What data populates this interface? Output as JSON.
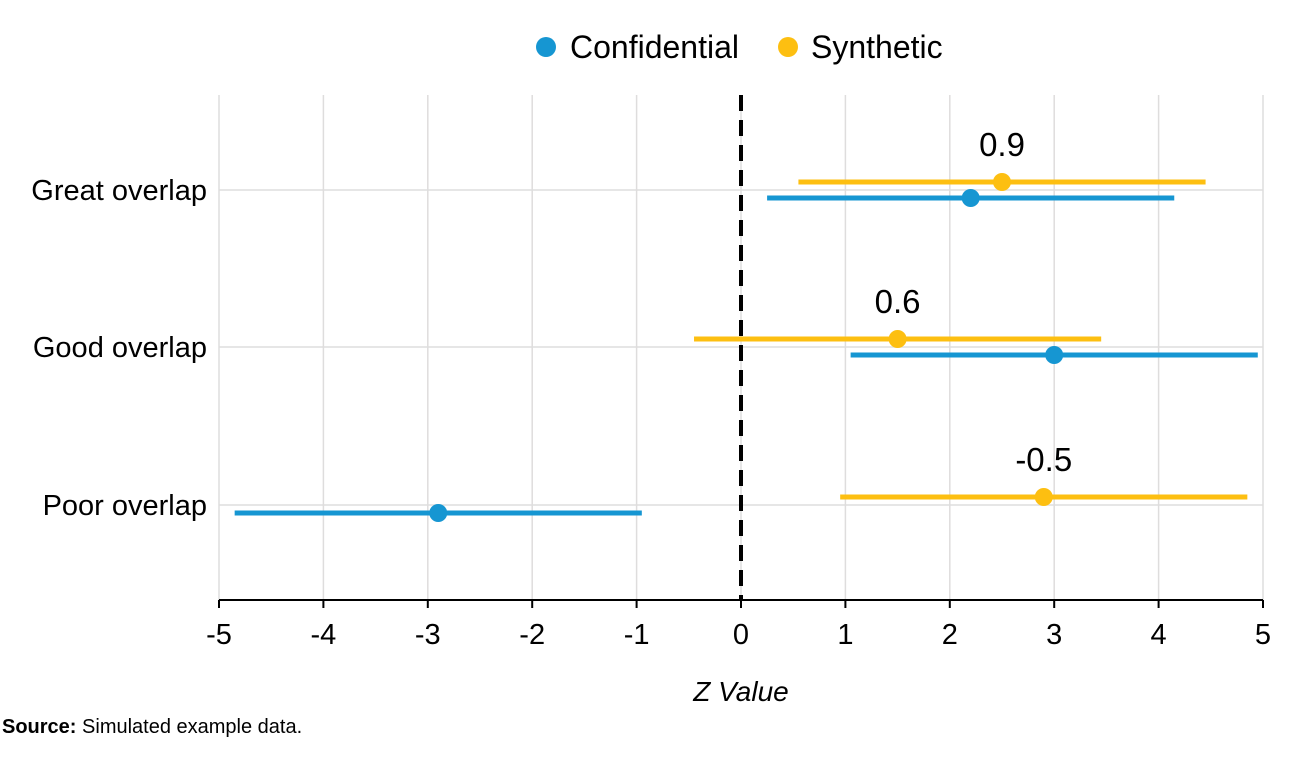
{
  "chart_data": {
    "type": "scatter",
    "subtype": "dot-and-interval",
    "xlabel": "Z Value",
    "xlim": [
      -5,
      5
    ],
    "xticks": [
      -5,
      -4,
      -3,
      -2,
      -1,
      0,
      1,
      2,
      3,
      4,
      5
    ],
    "categories": [
      "Great overlap",
      "Good overlap",
      "Poor overlap"
    ],
    "reference_line": {
      "x": 0,
      "style": "dashed",
      "color": "#000000"
    },
    "grid": true,
    "legend_position": "top",
    "series": [
      {
        "name": "Confidential",
        "color": "#1696d2",
        "points": [
          {
            "category": "Great overlap",
            "estimate": 2.2,
            "lower": 0.25,
            "upper": 4.15
          },
          {
            "category": "Good overlap",
            "estimate": 3.0,
            "lower": 1.05,
            "upper": 4.95
          },
          {
            "category": "Poor overlap",
            "estimate": -2.9,
            "lower": -4.85,
            "upper": -0.95
          }
        ]
      },
      {
        "name": "Synthetic",
        "color": "#fdbf11",
        "points": [
          {
            "category": "Great overlap",
            "estimate": 2.5,
            "lower": 0.55,
            "upper": 4.45
          },
          {
            "category": "Good overlap",
            "estimate": 1.5,
            "lower": -0.45,
            "upper": 3.45
          },
          {
            "category": "Poor overlap",
            "estimate": 2.9,
            "lower": 0.95,
            "upper": 4.85
          }
        ]
      }
    ],
    "annotations": [
      {
        "category": "Great overlap",
        "text": "0.9",
        "x": 2.5
      },
      {
        "category": "Good overlap",
        "text": "0.6",
        "x": 1.5
      },
      {
        "category": "Poor overlap",
        "text": "-0.5",
        "x": 2.9
      }
    ]
  },
  "colors": {
    "confidential": "#1696d2",
    "synthetic": "#fdbf11",
    "grid": "#dedddd",
    "axis": "#000000"
  },
  "source": {
    "label": "Source:",
    "text": "Simulated example data."
  }
}
